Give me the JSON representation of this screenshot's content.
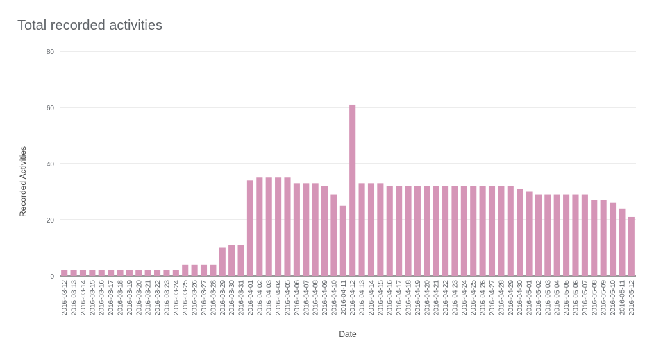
{
  "chart_data": {
    "type": "bar",
    "title": "Total recorded activities",
    "xlabel": "Date",
    "ylabel": "Recorded Activities",
    "ylim": [
      0,
      80
    ],
    "yticks": [
      "0",
      "20",
      "40",
      "60",
      "80"
    ],
    "grid": true,
    "bar_color": "#d595b7",
    "categories": [
      "2016-03-12",
      "2016-03-13",
      "2016-03-14",
      "2016-03-15",
      "2016-03-16",
      "2016-03-17",
      "2016-03-18",
      "2016-03-19",
      "2016-03-20",
      "2016-03-21",
      "2016-03-22",
      "2016-03-23",
      "2016-03-24",
      "2016-03-25",
      "2016-03-26",
      "2016-03-27",
      "2016-03-28",
      "2016-03-29",
      "2016-03-30",
      "2016-03-31",
      "2016-04-01",
      "2016-04-02",
      "2016-04-03",
      "2016-04-04",
      "2016-04-05",
      "2016-04-06",
      "2016-04-07",
      "2016-04-08",
      "2016-04-09",
      "2016-04-10",
      "2016-04-11",
      "2016-04-12",
      "2016-04-13",
      "2016-04-14",
      "2016-04-15",
      "2016-04-16",
      "2016-04-17",
      "2016-04-18",
      "2016-04-19",
      "2016-04-20",
      "2016-04-21",
      "2016-04-22",
      "2016-04-23",
      "2016-04-24",
      "2016-04-25",
      "2016-04-26",
      "2016-04-27",
      "2016-04-28",
      "2016-04-29",
      "2016-04-30",
      "2016-05-01",
      "2016-05-02",
      "2016-05-03",
      "2016-05-04",
      "2016-05-05",
      "2016-05-06",
      "2016-05-07",
      "2016-05-08",
      "2016-05-09",
      "2016-05-10",
      "2016-05-11",
      "2016-05-12"
    ],
    "values": [
      2,
      2,
      2,
      2,
      2,
      2,
      2,
      2,
      2,
      2,
      2,
      2,
      2,
      4,
      4,
      4,
      4,
      10,
      11,
      11,
      34,
      35,
      35,
      35,
      35,
      33,
      33,
      33,
      32,
      29,
      25,
      61,
      33,
      33,
      33,
      32,
      32,
      32,
      32,
      32,
      32,
      32,
      32,
      32,
      32,
      32,
      32,
      32,
      32,
      31,
      30,
      29,
      29,
      29,
      29,
      29,
      29,
      27,
      27,
      26,
      24,
      21
    ]
  }
}
